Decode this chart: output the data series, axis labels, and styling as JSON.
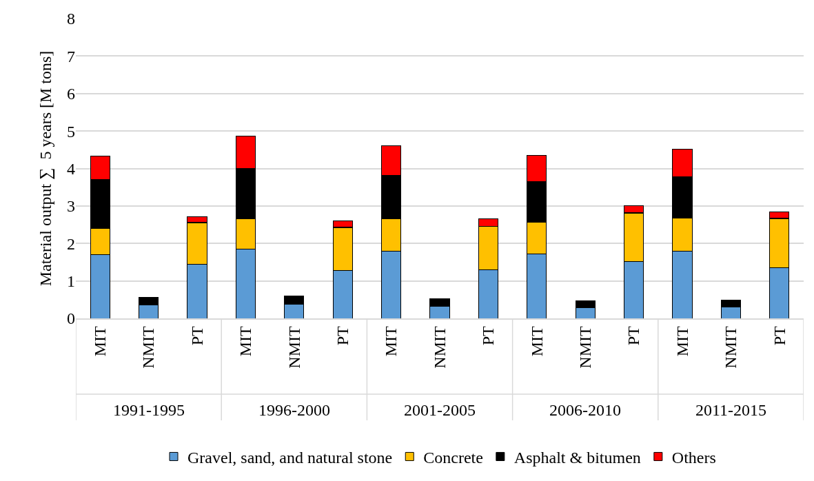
{
  "chart_data": {
    "type": "bar",
    "stacked": true,
    "ylabel": "Material output ∑  5 years [M tons]",
    "categories": [
      "MIT",
      "NMIT",
      "PT",
      "MIT",
      "NMIT",
      "PT",
      "MIT",
      "NMIT",
      "PT",
      "MIT",
      "NMIT",
      "PT",
      "MIT",
      "NMIT",
      "PT"
    ],
    "annotations": [
      "1991-1995",
      "1996-2000",
      "2001-2005",
      "2006-2010",
      "2011-2015"
    ],
    "series": [
      {
        "name": "Gravel, sand, and natural stone",
        "color": "#5b9bd5",
        "values": [
          1.7,
          0.35,
          1.45,
          1.85,
          0.37,
          1.28,
          1.8,
          0.32,
          1.3,
          1.72,
          0.28,
          1.52,
          1.8,
          0.3,
          1.35
        ]
      },
      {
        "name": "Concrete",
        "color": "#ffc000",
        "values": [
          0.7,
          null,
          1.1,
          0.8,
          null,
          1.14,
          0.85,
          null,
          1.15,
          0.85,
          null,
          1.28,
          0.88,
          null,
          1.3
        ]
      },
      {
        "name": "Asphalt & bitumen",
        "color": "#000000",
        "values": [
          1.3,
          0.21,
          0.02,
          1.35,
          0.23,
          0.02,
          1.17,
          0.2,
          null,
          1.08,
          0.19,
          0.02,
          1.1,
          0.18,
          0.02
        ]
      },
      {
        "name": "Others",
        "color": "#ff0000",
        "values": [
          0.63,
          null,
          0.15,
          0.87,
          null,
          0.16,
          0.78,
          null,
          0.2,
          0.7,
          null,
          0.18,
          0.74,
          null,
          0.18
        ]
      }
    ],
    "ylim": [
      0,
      8
    ],
    "yticks": [
      0,
      1,
      2,
      3,
      4,
      5,
      6,
      7,
      8
    ],
    "grid": "y",
    "legend": "bottom"
  }
}
